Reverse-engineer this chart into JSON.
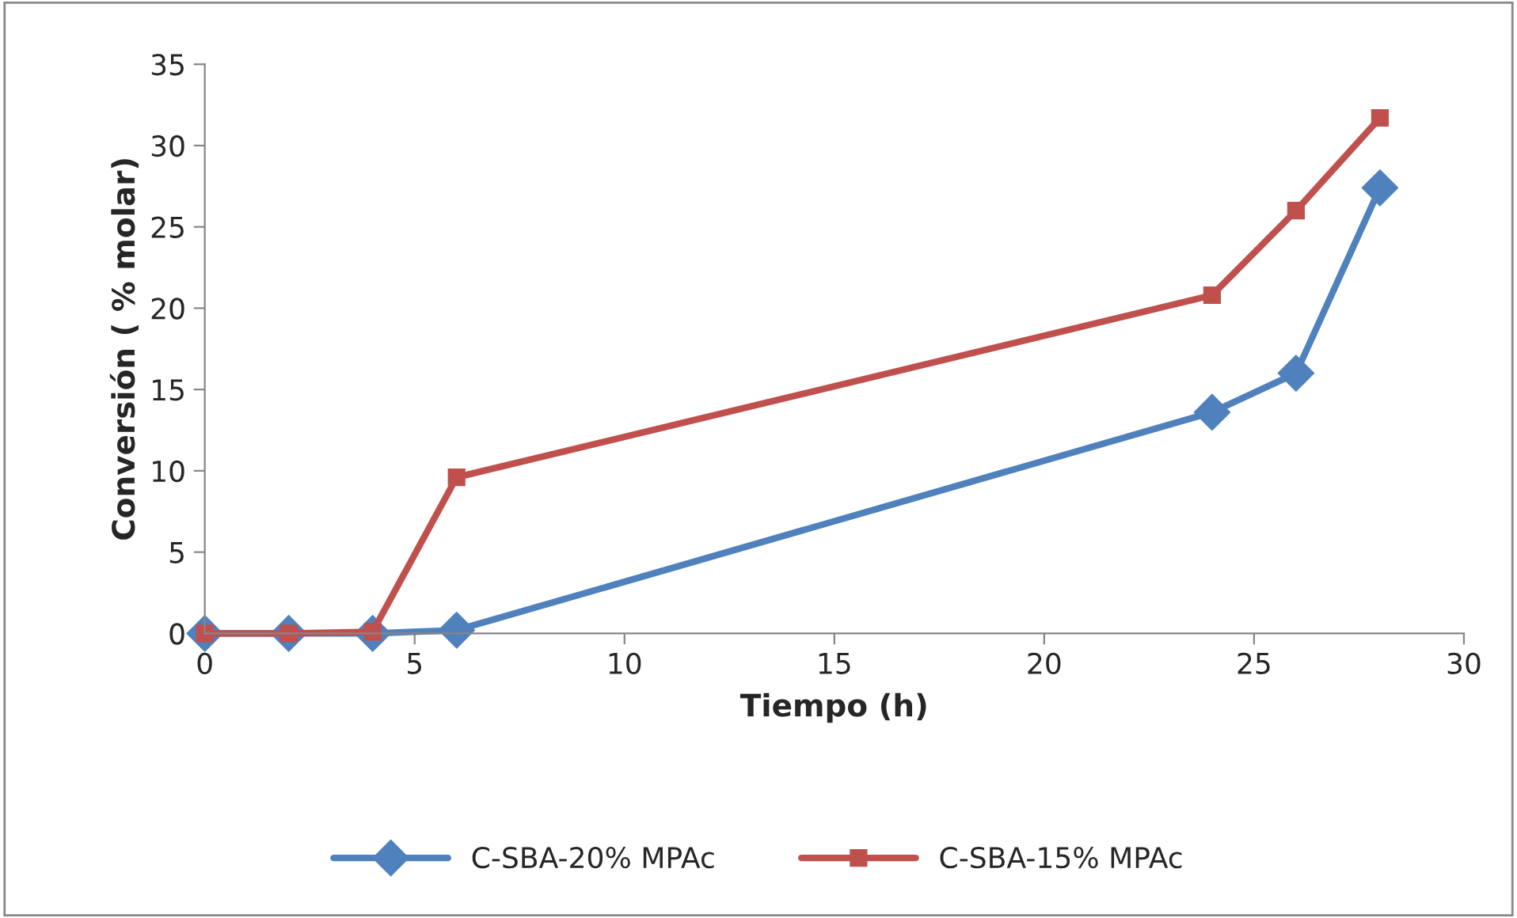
{
  "chart_data": {
    "type": "line",
    "xlabel": "Tiempo (h)",
    "ylabel": "Conversión ( % molar)",
    "x": [
      0,
      2,
      4,
      6,
      24,
      26,
      28
    ],
    "series": [
      {
        "name": "C-SBA-20% MPAc",
        "color": "#4f81bd",
        "marker": "diamond",
        "values": [
          0,
          0,
          0,
          0.2,
          13.6,
          16.0,
          27.4
        ]
      },
      {
        "name": "C-SBA-15% MPAc",
        "color": "#c0504d",
        "marker": "square",
        "values": [
          0,
          0,
          0.1,
          9.6,
          20.8,
          26.0,
          31.7
        ]
      }
    ],
    "xlim": [
      0,
      30
    ],
    "xticks": [
      0,
      5,
      10,
      15,
      20,
      25,
      30
    ],
    "ylim": [
      0,
      35
    ],
    "yticks": [
      0,
      5,
      10,
      15,
      20,
      25,
      30,
      35
    ],
    "grid": false,
    "legend": "bottom"
  }
}
